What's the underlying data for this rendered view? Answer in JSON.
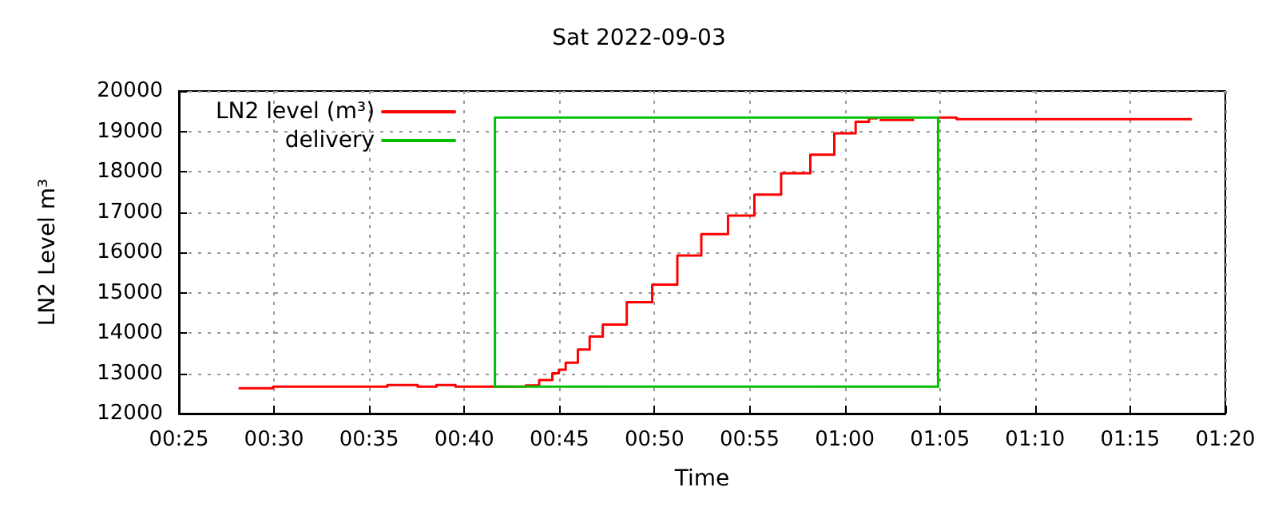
{
  "chart_data": {
    "type": "step",
    "title": "Sat 2022-09-03",
    "xlabel": "Time",
    "ylabel": "LN2 Level m³",
    "xlim": [
      0.41667,
      1.33333
    ],
    "xticks": [
      {
        "value": 0.41667,
        "label": "00:25"
      },
      {
        "value": 0.5,
        "label": "00:30"
      },
      {
        "value": 0.58333,
        "label": "00:35"
      },
      {
        "value": 0.66667,
        "label": "00:40"
      },
      {
        "value": 0.75,
        "label": "00:45"
      },
      {
        "value": 0.83333,
        "label": "00:50"
      },
      {
        "value": 0.91667,
        "label": "00:55"
      },
      {
        "value": 1,
        "label": "01:00"
      },
      {
        "value": 1.08333,
        "label": "01:05"
      },
      {
        "value": 1.16667,
        "label": "01:10"
      },
      {
        "value": 1.25,
        "label": "01:15"
      },
      {
        "value": 1.33333,
        "label": "01:20"
      }
    ],
    "ylim": [
      12000,
      20000
    ],
    "yticks": [
      12000,
      13000,
      14000,
      15000,
      16000,
      17000,
      18000,
      19000,
      20000
    ],
    "grid": true,
    "legend": "top left",
    "marker": "none",
    "series": [
      {
        "name": "LN2 level (m³)",
        "color": "#ff0000",
        "x": [
          0.4698,
          0.4992,
          0.5993,
          0.6258,
          0.6422,
          0.659,
          0.7205,
          0.7322,
          0.7438,
          0.7495,
          0.7555,
          0.7662,
          0.7765,
          0.788,
          0.809,
          0.8313,
          0.8533,
          0.8743,
          0.8977,
          0.9208,
          0.9442,
          0.9698,
          0.9908,
          1.0095,
          1.0212,
          1.025,
          1.028,
          1.0313,
          1.0375,
          1.06,
          1.0817,
          1.098,
          1.3032
        ],
        "values": [
          12630,
          12670,
          12710,
          12670,
          12710,
          12670,
          12700,
          12830,
          13000,
          13090,
          13260,
          13590,
          13910,
          14210,
          14760,
          15200,
          15920,
          16450,
          16910,
          17430,
          17960,
          18420,
          18950,
          19240,
          19320,
          19320,
          null,
          19280,
          19280,
          null,
          19340,
          19300,
          19300
        ]
      },
      {
        "name": "delivery",
        "type": "line",
        "color": "#00c000",
        "x": [
          0.6935,
          0.6935,
          1.0817,
          1.0817
        ],
        "values": [
          12670,
          19340,
          19340,
          12670
        ]
      },
      {
        "type": "line",
        "color": "#00c000",
        "x": [
          0.6935,
          1.0817
        ],
        "values": [
          12670,
          12670
        ]
      }
    ]
  }
}
